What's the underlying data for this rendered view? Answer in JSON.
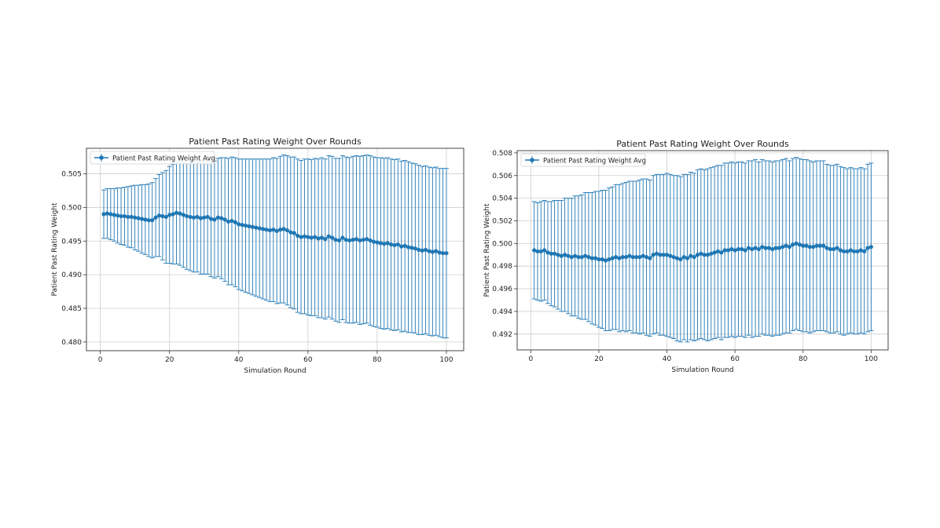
{
  "chart_data": [
    {
      "type": "line",
      "title": "Patient Past Rating Weight Over Rounds",
      "xlabel": "Simulation Round",
      "ylabel": "Patient Past Rating Weight",
      "legend": "Patient Past Rating Weight Avg",
      "legend_position": "top-left",
      "grid": true,
      "xlim": [
        -4,
        105
      ],
      "ylim": [
        0.4787,
        0.5088
      ],
      "xticks": [
        0,
        20,
        40,
        60,
        80,
        100
      ],
      "xtick_labels": [
        "0",
        "20",
        "40",
        "60",
        "80",
        "100"
      ],
      "yticks": [
        0.48,
        0.485,
        0.49,
        0.495,
        0.5,
        0.505
      ],
      "ytick_labels": [
        "0.480",
        "0.485",
        "0.490",
        "0.495",
        "0.500",
        "0.505"
      ],
      "color": "#1f77b4",
      "series": [
        {
          "name": "Patient Past Rating Weight Avg",
          "x": [
            1,
            2,
            3,
            4,
            5,
            6,
            7,
            8,
            9,
            10,
            11,
            12,
            13,
            14,
            15,
            16,
            17,
            18,
            19,
            20,
            21,
            22,
            23,
            24,
            25,
            26,
            27,
            28,
            29,
            30,
            31,
            32,
            33,
            34,
            35,
            36,
            37,
            38,
            39,
            40,
            41,
            42,
            43,
            44,
            45,
            46,
            47,
            48,
            49,
            50,
            51,
            52,
            53,
            54,
            55,
            56,
            57,
            58,
            59,
            60,
            61,
            62,
            63,
            64,
            65,
            66,
            67,
            68,
            69,
            70,
            71,
            72,
            73,
            74,
            75,
            76,
            77,
            78,
            79,
            80,
            81,
            82,
            83,
            84,
            85,
            86,
            87,
            88,
            89,
            90,
            91,
            92,
            93,
            94,
            95,
            96,
            97,
            98,
            99,
            100
          ],
          "values": [
            0.499,
            0.4991,
            0.499,
            0.4989,
            0.4988,
            0.4987,
            0.4987,
            0.4986,
            0.4986,
            0.4985,
            0.4984,
            0.4983,
            0.4982,
            0.4981,
            0.4981,
            0.4985,
            0.4988,
            0.4987,
            0.4986,
            0.4989,
            0.499,
            0.4992,
            0.4991,
            0.4989,
            0.4987,
            0.4986,
            0.4985,
            0.4986,
            0.4984,
            0.4985,
            0.4986,
            0.4983,
            0.4982,
            0.4985,
            0.4984,
            0.4982,
            0.4979,
            0.498,
            0.4978,
            0.4975,
            0.4974,
            0.4973,
            0.4972,
            0.4971,
            0.497,
            0.4969,
            0.4968,
            0.4967,
            0.4966,
            0.4967,
            0.4965,
            0.4967,
            0.4968,
            0.4966,
            0.4963,
            0.4962,
            0.4958,
            0.4956,
            0.4957,
            0.4956,
            0.4955,
            0.4956,
            0.4954,
            0.4955,
            0.4953,
            0.4957,
            0.4955,
            0.4952,
            0.4951,
            0.4955,
            0.4952,
            0.4951,
            0.4952,
            0.4953,
            0.4951,
            0.4952,
            0.4953,
            0.4951,
            0.4949,
            0.4948,
            0.4947,
            0.4946,
            0.4947,
            0.4945,
            0.4944,
            0.4945,
            0.4942,
            0.4943,
            0.4941,
            0.494,
            0.4939,
            0.4937,
            0.4936,
            0.4937,
            0.4935,
            0.4934,
            0.4935,
            0.4933,
            0.4932,
            0.4932
          ],
          "errors": [
            0.0036,
            0.0037,
            0.0038,
            0.0039,
            0.0041,
            0.0042,
            0.0043,
            0.0045,
            0.0046,
            0.0048,
            0.0049,
            0.0051,
            0.0052,
            0.0054,
            0.0056,
            0.0058,
            0.0061,
            0.0065,
            0.0069,
            0.0072,
            0.0074,
            0.0076,
            0.0077,
            0.0078,
            0.0079,
            0.008,
            0.0081,
            0.0082,
            0.0083,
            0.0084,
            0.0085,
            0.0086,
            0.0087,
            0.0088,
            0.009,
            0.0092,
            0.0094,
            0.0095,
            0.0096,
            0.0097,
            0.0098,
            0.0099,
            0.01,
            0.0101,
            0.0102,
            0.0103,
            0.0104,
            0.0105,
            0.0106,
            0.0107,
            0.0108,
            0.0109,
            0.011,
            0.0111,
            0.0112,
            0.0113,
            0.0114,
            0.0114,
            0.0115,
            0.0116,
            0.0116,
            0.0117,
            0.0118,
            0.0119,
            0.0119,
            0.012,
            0.0121,
            0.0121,
            0.0122,
            0.0122,
            0.0123,
            0.0123,
            0.0124,
            0.0124,
            0.0125,
            0.0125,
            0.0125,
            0.0126,
            0.0126,
            0.0126,
            0.0127,
            0.0127,
            0.0127,
            0.0127,
            0.0127,
            0.0127,
            0.0127,
            0.0127,
            0.0127,
            0.0126,
            0.0126,
            0.0126,
            0.0125,
            0.0125,
            0.0125,
            0.0125,
            0.0125,
            0.0125,
            0.0126,
            0.0126
          ]
        }
      ]
    },
    {
      "type": "line",
      "title": "Patient Past Rating Weight Over Rounds",
      "xlabel": "Simulation Round",
      "ylabel": "Patient Past Rating Weight",
      "legend": "Patient Past Rating Weight Avg",
      "legend_position": "top-left",
      "grid": true,
      "xlim": [
        -4,
        105
      ],
      "ylim": [
        0.4906,
        0.5082
      ],
      "xticks": [
        0,
        20,
        40,
        60,
        80,
        100
      ],
      "xtick_labels": [
        "0",
        "20",
        "40",
        "60",
        "80",
        "100"
      ],
      "yticks": [
        0.492,
        0.494,
        0.496,
        0.498,
        0.5,
        0.502,
        0.504,
        0.506,
        0.508
      ],
      "ytick_labels": [
        "0.492",
        "0.494",
        "0.496",
        "0.498",
        "0.500",
        "0.502",
        "0.504",
        "0.506",
        "0.508"
      ],
      "color": "#1f77b4",
      "series": [
        {
          "name": "Patient Past Rating Weight Avg",
          "x": [
            1,
            2,
            3,
            4,
            5,
            6,
            7,
            8,
            9,
            10,
            11,
            12,
            13,
            14,
            15,
            16,
            17,
            18,
            19,
            20,
            21,
            22,
            23,
            24,
            25,
            26,
            27,
            28,
            29,
            30,
            31,
            32,
            33,
            34,
            35,
            36,
            37,
            38,
            39,
            40,
            41,
            42,
            43,
            44,
            45,
            46,
            47,
            48,
            49,
            50,
            51,
            52,
            53,
            54,
            55,
            56,
            57,
            58,
            59,
            60,
            61,
            62,
            63,
            64,
            65,
            66,
            67,
            68,
            69,
            70,
            71,
            72,
            73,
            74,
            75,
            76,
            77,
            78,
            79,
            80,
            81,
            82,
            83,
            84,
            85,
            86,
            87,
            88,
            89,
            90,
            91,
            92,
            93,
            94,
            95,
            96,
            97,
            98,
            99,
            100
          ],
          "values": [
            0.4994,
            0.4993,
            0.4993,
            0.4994,
            0.4992,
            0.4991,
            0.4991,
            0.499,
            0.4989,
            0.499,
            0.4989,
            0.4988,
            0.4989,
            0.4988,
            0.4988,
            0.4989,
            0.4988,
            0.4987,
            0.4987,
            0.4986,
            0.4986,
            0.4985,
            0.4986,
            0.4987,
            0.4988,
            0.4987,
            0.4988,
            0.4988,
            0.4989,
            0.4988,
            0.4988,
            0.4988,
            0.4989,
            0.4988,
            0.4987,
            0.499,
            0.4991,
            0.499,
            0.499,
            0.499,
            0.4989,
            0.4988,
            0.4987,
            0.4986,
            0.4988,
            0.4987,
            0.4989,
            0.4988,
            0.499,
            0.4991,
            0.499,
            0.499,
            0.4991,
            0.4992,
            0.4993,
            0.4992,
            0.4994,
            0.4994,
            0.4995,
            0.4994,
            0.4995,
            0.4995,
            0.4994,
            0.4996,
            0.4995,
            0.4996,
            0.4995,
            0.4997,
            0.4996,
            0.4996,
            0.4995,
            0.4996,
            0.4996,
            0.4997,
            0.4998,
            0.4997,
            0.4999,
            0.5,
            0.4999,
            0.4998,
            0.4998,
            0.4997,
            0.4997,
            0.4998,
            0.4998,
            0.4998,
            0.4996,
            0.4995,
            0.4995,
            0.4996,
            0.4994,
            0.4993,
            0.4993,
            0.4994,
            0.4993,
            0.4993,
            0.4994,
            0.4993,
            0.4996,
            0.4997
          ],
          "errors": [
            0.0043,
            0.0043,
            0.0044,
            0.0044,
            0.0045,
            0.0046,
            0.0047,
            0.0048,
            0.0049,
            0.005,
            0.0051,
            0.0052,
            0.0053,
            0.0054,
            0.0055,
            0.0056,
            0.0057,
            0.0058,
            0.0059,
            0.006,
            0.0061,
            0.0062,
            0.0063,
            0.0063,
            0.0064,
            0.0065,
            0.0065,
            0.0066,
            0.0066,
            0.0067,
            0.0067,
            0.0068,
            0.0068,
            0.0069,
            0.0069,
            0.007,
            0.007,
            0.0071,
            0.0071,
            0.0072,
            0.0072,
            0.0072,
            0.0073,
            0.0073,
            0.0073,
            0.0074,
            0.0074,
            0.0074,
            0.0075,
            0.0075,
            0.0075,
            0.0076,
            0.0076,
            0.0076,
            0.0076,
            0.0077,
            0.0077,
            0.0077,
            0.0077,
            0.0077,
            0.0077,
            0.0077,
            0.0077,
            0.0077,
            0.0078,
            0.0078,
            0.0077,
            0.0077,
            0.0077,
            0.0077,
            0.0077,
            0.0077,
            0.0077,
            0.0077,
            0.0077,
            0.0076,
            0.0076,
            0.0076,
            0.0076,
            0.0076,
            0.0076,
            0.0076,
            0.0075,
            0.0075,
            0.0075,
            0.0075,
            0.0074,
            0.0074,
            0.0074,
            0.0074,
            0.0074,
            0.0074,
            0.0073,
            0.0073,
            0.0073,
            0.0073,
            0.0073,
            0.0073,
            0.0074,
            0.0074
          ]
        }
      ]
    }
  ]
}
